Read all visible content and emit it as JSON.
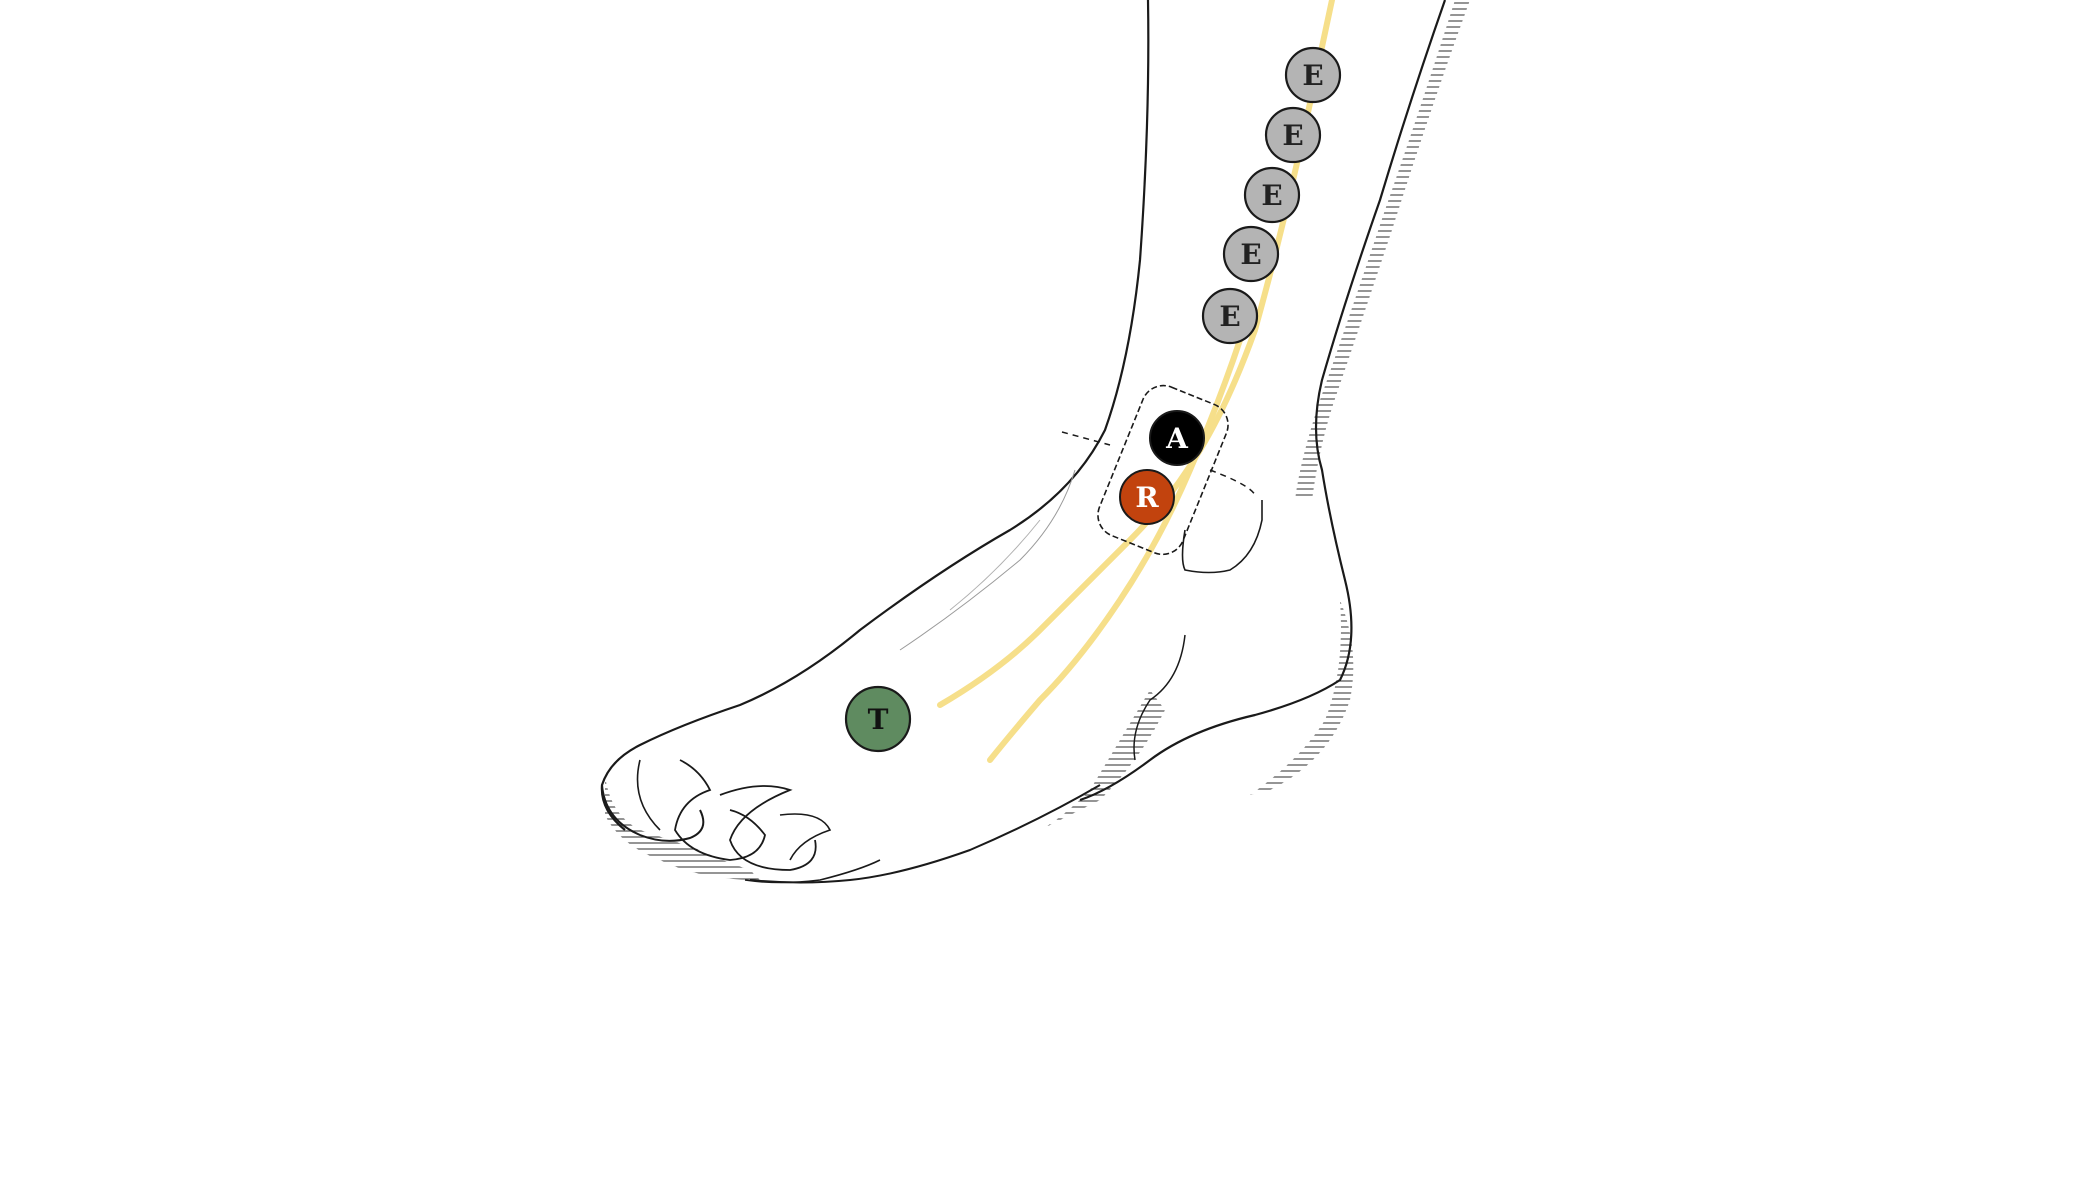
{
  "diagram": {
    "nerve_color": "#f6df8a",
    "outline_color": "#1a1a1a",
    "hatch_color": "#555555",
    "markers": {
      "electrodes": [
        {
          "label": "E",
          "fill": "#b4b4b4",
          "text_color": "#222222"
        },
        {
          "label": "E",
          "fill": "#b4b4b4",
          "text_color": "#222222"
        },
        {
          "label": "E",
          "fill": "#b4b4b4",
          "text_color": "#222222"
        },
        {
          "label": "E",
          "fill": "#b4b4b4",
          "text_color": "#222222"
        },
        {
          "label": "E",
          "fill": "#b4b4b4",
          "text_color": "#222222"
        }
      ],
      "active": {
        "label": "A",
        "fill": "#000000",
        "text_color": "#ffffff"
      },
      "reference": {
        "label": "R",
        "fill": "#c2430e",
        "text_color": "#ffffff"
      },
      "target": {
        "label": "T",
        "fill": "#5f8b60",
        "text_color": "#111111"
      }
    }
  }
}
